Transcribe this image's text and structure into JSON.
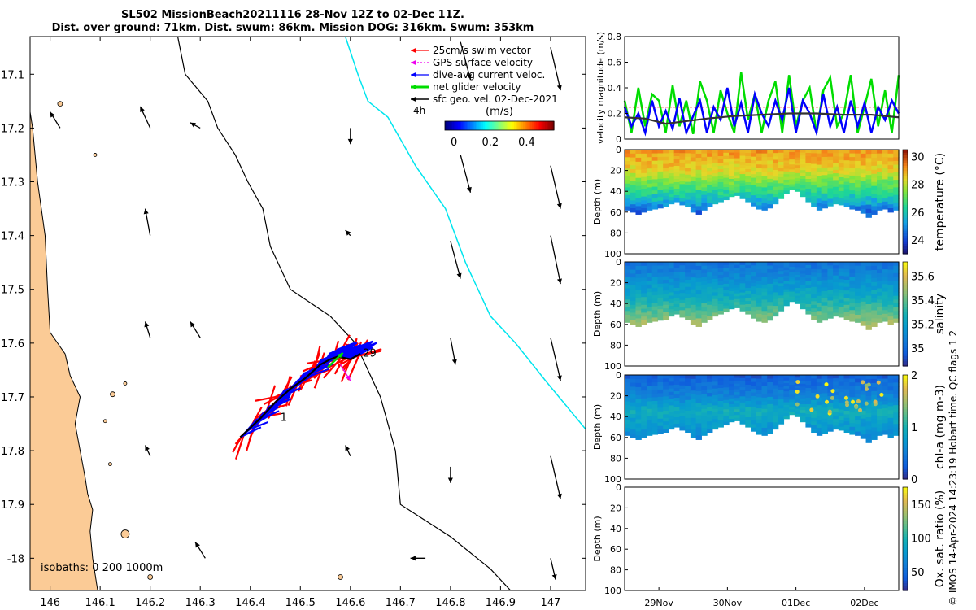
{
  "title": {
    "line1": "SL502 MissionBeach20211116 28-Nov 12Z to 02-Dec 11Z.",
    "line2": "Dist. over ground: 71km. Dist. swum: 86km. Mission DOG: 316km. Swum: 353km"
  },
  "credit": "© IMOS 14-Apr-2024 14:23:19 Hobart time. QC flags 1  2",
  "colors": {
    "land": "#fbcb96",
    "swim": "#ff0000",
    "gps": "#ee00ee",
    "dac": "#0000ff",
    "net": "#00dd00",
    "sfc": "#000000",
    "isobath_1000": "#00e5ee"
  },
  "chart_data": [
    {
      "type": "map",
      "name": "glider-track-map",
      "xlim": [
        145.96,
        147.07
      ],
      "ylim": [
        -18.06,
        -17.03
      ],
      "x_ticks": [
        146,
        146.1,
        146.2,
        146.3,
        146.4,
        146.5,
        146.6,
        146.7,
        146.8,
        146.9,
        147
      ],
      "x_tick_labels": [
        "146",
        "146.1",
        "146.2",
        "146.3",
        "146.4",
        "146.5",
        "146.6",
        "146.7",
        "146.8",
        "146.9",
        "147"
      ],
      "y_ticks": [
        -17.1,
        -17.2,
        -17.3,
        -17.4,
        -17.5,
        -17.6,
        -17.7,
        -17.8,
        -17.9,
        -18
      ],
      "y_tick_labels": [
        "17.1",
        "17.2",
        "17.3",
        "17.4",
        "17.5",
        "17.6",
        "17.7",
        "17.8",
        "17.9",
        "-18"
      ],
      "coastline": [
        [
          145.96,
          -17.17
        ],
        [
          145.965,
          -17.2
        ],
        [
          145.975,
          -17.3
        ],
        [
          145.99,
          -17.4
        ],
        [
          145.995,
          -17.5
        ],
        [
          146.0,
          -17.58
        ],
        [
          146.015,
          -17.6
        ],
        [
          146.03,
          -17.62
        ],
        [
          146.04,
          -17.66
        ],
        [
          146.06,
          -17.7
        ],
        [
          146.05,
          -17.75
        ],
        [
          146.06,
          -17.8
        ],
        [
          146.07,
          -17.85
        ],
        [
          146.075,
          -17.88
        ],
        [
          146.085,
          -17.91
        ],
        [
          146.08,
          -17.95
        ],
        [
          146.085,
          -18.0
        ],
        [
          146.09,
          -18.03
        ],
        [
          146.095,
          -18.06
        ]
      ],
      "islands": [
        [
          146.02,
          -17.155,
          3
        ],
        [
          146.09,
          -17.25,
          2
        ],
        [
          146.125,
          -17.695,
          3
        ],
        [
          146.15,
          -17.675,
          2
        ],
        [
          146.11,
          -17.745,
          2
        ],
        [
          146.12,
          -17.825,
          2
        ],
        [
          146.15,
          -17.955,
          5
        ],
        [
          146.2,
          -18.035,
          3
        ],
        [
          146.58,
          -18.035,
          3
        ]
      ],
      "isobath_200": [
        [
          146.255,
          -17.03
        ],
        [
          146.27,
          -17.1
        ],
        [
          146.315,
          -17.15
        ],
        [
          146.335,
          -17.2
        ],
        [
          146.37,
          -17.25
        ],
        [
          146.395,
          -17.3
        ],
        [
          146.425,
          -17.35
        ],
        [
          146.44,
          -17.42
        ],
        [
          146.48,
          -17.5
        ],
        [
          146.56,
          -17.55
        ],
        [
          146.61,
          -17.6
        ],
        [
          146.66,
          -17.7
        ],
        [
          146.69,
          -17.8
        ],
        [
          146.7,
          -17.9
        ],
        [
          146.8,
          -17.96
        ],
        [
          146.88,
          -18.02
        ],
        [
          146.92,
          -18.06
        ]
      ],
      "isobath_1000": [
        [
          146.59,
          -17.03
        ],
        [
          146.615,
          -17.1
        ],
        [
          146.635,
          -17.15
        ],
        [
          146.675,
          -17.18
        ],
        [
          146.73,
          -17.27
        ],
        [
          146.79,
          -17.35
        ],
        [
          146.83,
          -17.45
        ],
        [
          146.88,
          -17.55
        ],
        [
          146.93,
          -17.6
        ],
        [
          146.99,
          -17.67
        ],
        [
          147.07,
          -17.76
        ]
      ],
      "sfc_vectors": [
        [
          146.02,
          -17.2,
          146.0,
          -17.17
        ],
        [
          146.2,
          -17.2,
          146.18,
          -17.16
        ],
        [
          146.3,
          -17.2,
          146.28,
          -17.19
        ],
        [
          146.6,
          -17.2,
          146.6,
          -17.23
        ],
        [
          146.82,
          -17.04,
          146.84,
          -17.11
        ],
        [
          147.0,
          -17.05,
          147.02,
          -17.13
        ],
        [
          146.82,
          -17.25,
          146.84,
          -17.32
        ],
        [
          147.0,
          -17.27,
          147.02,
          -17.35
        ],
        [
          146.2,
          -17.4,
          146.19,
          -17.35
        ],
        [
          146.6,
          -17.4,
          146.59,
          -17.39
        ],
        [
          146.8,
          -17.41,
          146.82,
          -17.48
        ],
        [
          147.0,
          -17.4,
          147.02,
          -17.49
        ],
        [
          146.2,
          -17.59,
          146.19,
          -17.56
        ],
        [
          146.3,
          -17.59,
          146.28,
          -17.56
        ],
        [
          146.8,
          -17.59,
          146.81,
          -17.64
        ],
        [
          147.0,
          -17.59,
          147.02,
          -17.67
        ],
        [
          146.2,
          -17.81,
          146.19,
          -17.79
        ],
        [
          146.6,
          -17.81,
          146.59,
          -17.79
        ],
        [
          146.8,
          -17.83,
          146.8,
          -17.86
        ],
        [
          147.0,
          -17.81,
          147.02,
          -17.89
        ],
        [
          146.31,
          -18.0,
          146.29,
          -17.97
        ],
        [
          146.75,
          -18.0,
          146.72,
          -18.0
        ],
        [
          147.0,
          -18.0,
          147.01,
          -18.04
        ]
      ],
      "track": [
        [
          146.38,
          -17.775
        ],
        [
          146.42,
          -17.74
        ],
        [
          146.45,
          -17.71
        ],
        [
          146.48,
          -17.685
        ],
        [
          146.51,
          -17.665
        ],
        [
          146.54,
          -17.64
        ],
        [
          146.56,
          -17.63
        ],
        [
          146.575,
          -17.625
        ],
        [
          146.6,
          -17.63
        ],
        [
          146.62,
          -17.62
        ]
      ],
      "track_labels": [
        {
          "text": "1",
          "lon": 146.46,
          "lat": -17.745
        },
        {
          "text": "29",
          "lon": 146.625,
          "lat": -17.625
        }
      ],
      "isobath_label": "isobaths: 0   200  1000m",
      "legend": [
        {
          "label": "25cm/s swim vector",
          "color": "#ff0000"
        },
        {
          "label": "GPS surface velocity",
          "color": "#ee00ee"
        },
        {
          "label": "dive-avg current veloc.",
          "color": "#0000ff"
        },
        {
          "label": "net glider velocity",
          "color": "#00dd00"
        },
        {
          "label": "sfc geo. vel. 02-Dec-2021",
          "color": "#000000"
        }
      ],
      "legend_note": "4h",
      "colorbar": {
        "label": "(m/s)",
        "range": [
          -0.05,
          0.55
        ],
        "ticks": [
          0,
          0.2,
          0.4
        ],
        "tick_labels": [
          "0",
          "0.2",
          "0.4"
        ]
      }
    },
    {
      "type": "line",
      "name": "velocity-magnitude",
      "ylabel": "velocity magnitude (m/s)",
      "ylim": [
        0,
        0.8
      ],
      "y_ticks": [
        0,
        0.2,
        0.4,
        0.6,
        0.8
      ],
      "y_tick_labels": [
        "0",
        "0.2",
        "0.4",
        "0.6",
        "0.8"
      ],
      "xlim": [
        0,
        4
      ],
      "series": [
        {
          "name": "net glider velocity",
          "color": "#00dd00",
          "x": [
            0,
            0.1,
            0.2,
            0.3,
            0.4,
            0.5,
            0.6,
            0.7,
            0.8,
            0.9,
            1.0,
            1.1,
            1.2,
            1.3,
            1.4,
            1.5,
            1.6,
            1.7,
            1.8,
            1.9,
            2.0,
            2.1,
            2.2,
            2.3,
            2.4,
            2.5,
            2.6,
            2.7,
            2.8,
            2.9,
            3.0,
            3.1,
            3.2,
            3.3,
            3.4,
            3.5,
            3.6,
            3.7,
            3.8,
            3.9,
            4.0
          ],
          "values": [
            0.3,
            0.05,
            0.4,
            0.1,
            0.35,
            0.3,
            0.05,
            0.42,
            0.1,
            0.3,
            0.04,
            0.45,
            0.3,
            0.05,
            0.38,
            0.2,
            0.05,
            0.52,
            0.15,
            0.35,
            0.05,
            0.3,
            0.45,
            0.05,
            0.5,
            0.1,
            0.3,
            0.4,
            0.05,
            0.38,
            0.48,
            0.1,
            0.2,
            0.5,
            0.05,
            0.25,
            0.47,
            0.1,
            0.38,
            0.05,
            0.5
          ]
        },
        {
          "name": "dive-avg current veloc.",
          "color": "#0000ff",
          "x": [
            0,
            0.1,
            0.2,
            0.3,
            0.4,
            0.5,
            0.6,
            0.7,
            0.8,
            0.9,
            1.0,
            1.1,
            1.2,
            1.3,
            1.4,
            1.5,
            1.6,
            1.7,
            1.8,
            1.9,
            2.0,
            2.1,
            2.2,
            2.3,
            2.4,
            2.5,
            2.6,
            2.7,
            2.8,
            2.9,
            3.0,
            3.1,
            3.2,
            3.3,
            3.4,
            3.5,
            3.6,
            3.7,
            3.8,
            3.9,
            4.0
          ],
          "values": [
            0.25,
            0.1,
            0.2,
            0.05,
            0.3,
            0.1,
            0.22,
            0.08,
            0.32,
            0.05,
            0.18,
            0.3,
            0.05,
            0.25,
            0.15,
            0.4,
            0.1,
            0.28,
            0.05,
            0.35,
            0.2,
            0.1,
            0.3,
            0.15,
            0.4,
            0.05,
            0.3,
            0.2,
            0.05,
            0.35,
            0.1,
            0.25,
            0.05,
            0.3,
            0.1,
            0.28,
            0.05,
            0.25,
            0.15,
            0.3,
            0.2
          ]
        },
        {
          "name": "swim speed",
          "color": "#ff0000",
          "x": [
            0,
            4
          ],
          "values": [
            0.25,
            0.25
          ]
        },
        {
          "name": "sfc velocity",
          "color": "#333333",
          "x": [
            0,
            0.3,
            0.6,
            0.9,
            1.2,
            1.6,
            2.0,
            2.4,
            2.8,
            3.2,
            3.6,
            4.0
          ],
          "values": [
            0.17,
            0.16,
            0.12,
            0.14,
            0.16,
            0.18,
            0.19,
            0.2,
            0.2,
            0.19,
            0.19,
            0.17
          ]
        }
      ]
    },
    {
      "type": "heatmap",
      "name": "temperature-section",
      "ylabel": "Depth (m)",
      "clabel": "temperature (°C)",
      "ylim": [
        0,
        100
      ],
      "y_ticks": [
        0,
        20,
        40,
        60,
        80,
        100
      ],
      "y_tick_labels": [
        "0",
        "20",
        "40",
        "60",
        "80",
        "100"
      ],
      "clim": [
        23,
        30.5
      ],
      "c_ticks": [
        24,
        26,
        28,
        30
      ],
      "c_tick_labels": [
        "24",
        "26",
        "28",
        "30"
      ],
      "bottom_depth": [
        58,
        60,
        62,
        60,
        58,
        57,
        56,
        55,
        52,
        50,
        53,
        55,
        60,
        62,
        58,
        55,
        52,
        50,
        48,
        45,
        44,
        47,
        50,
        54,
        57,
        58,
        56,
        52,
        47,
        42,
        38,
        40,
        45,
        50,
        55,
        58,
        56,
        54,
        52,
        53,
        55,
        57,
        58,
        61,
        65,
        62,
        58,
        57,
        60,
        58
      ],
      "profiles": [
        {
          "depths": [
            0,
            20,
            40,
            50,
            60
          ],
          "values": [
            29.2,
            28.4,
            26.5,
            25.5,
            24.3
          ]
        }
      ]
    },
    {
      "type": "heatmap",
      "name": "salinity-section",
      "ylabel": "Depth (m)",
      "clabel": "salinity",
      "ylim": [
        0,
        100
      ],
      "y_ticks": [
        0,
        20,
        40,
        60,
        80,
        100
      ],
      "y_tick_labels": [
        "0",
        "20",
        "40",
        "60",
        "80",
        "100"
      ],
      "clim": [
        34.85,
        35.72
      ],
      "c_ticks": [
        35,
        35.2,
        35.4,
        35.6
      ],
      "c_tick_labels": [
        "35",
        "35.2",
        "35.4",
        "35.6"
      ],
      "bottom_depth": [
        58,
        60,
        62,
        60,
        58,
        57,
        56,
        55,
        52,
        50,
        53,
        55,
        60,
        62,
        58,
        55,
        52,
        50,
        48,
        45,
        44,
        47,
        50,
        54,
        57,
        58,
        56,
        52,
        47,
        42,
        38,
        40,
        45,
        50,
        55,
        58,
        56,
        54,
        52,
        53,
        55,
        57,
        58,
        61,
        65,
        62,
        58,
        57,
        60,
        58
      ],
      "profiles": [
        {
          "depths": [
            0,
            20,
            40,
            50,
            60
          ],
          "values": [
            35.02,
            35.15,
            35.3,
            35.4,
            35.5
          ]
        }
      ]
    },
    {
      "type": "heatmap",
      "name": "chlorophyll-section",
      "ylabel": "Depth (m)",
      "clabel": "chl-a (mg m-3)",
      "ylim": [
        0,
        100
      ],
      "y_ticks": [
        0,
        20,
        40,
        60,
        80,
        100
      ],
      "y_tick_labels": [
        "0",
        "20",
        "40",
        "60",
        "80",
        "100"
      ],
      "clim": [
        0,
        2
      ],
      "c_ticks": [
        0,
        1,
        2
      ],
      "c_tick_labels": [
        "0",
        "1",
        "2"
      ],
      "bottom_depth": [
        58,
        60,
        62,
        60,
        58,
        57,
        56,
        55,
        52,
        50,
        53,
        55,
        60,
        62,
        58,
        55,
        52,
        50,
        48,
        45,
        44,
        47,
        50,
        54,
        57,
        58,
        56,
        52,
        47,
        42,
        38,
        40,
        45,
        50,
        55,
        58,
        56,
        54,
        52,
        53,
        55,
        57,
        58,
        61,
        65,
        62,
        58,
        57,
        60,
        58
      ],
      "profiles": [
        {
          "depths": [
            0,
            20,
            35,
            45,
            60
          ],
          "values": [
            0.25,
            0.55,
            0.95,
            0.8,
            0.6
          ]
        }
      ]
    },
    {
      "type": "heatmap",
      "name": "oxygen-saturation-section",
      "ylabel": "Depth (m)",
      "clabel": "Ox. sat. ratio (%)",
      "ylim": [
        0,
        100
      ],
      "y_ticks": [
        0,
        20,
        40,
        60,
        80,
        100
      ],
      "y_tick_labels": [
        "0",
        "20",
        "40",
        "60",
        "80",
        "100"
      ],
      "clim": [
        22,
        175
      ],
      "c_ticks": [
        50,
        100,
        150
      ],
      "c_tick_labels": [
        "50",
        "100",
        "150"
      ],
      "x_tick_labels": [
        "29Nov",
        "30Nov",
        "01Dec",
        "02Dec"
      ],
      "x_ticks": [
        0.5,
        1.5,
        2.5,
        3.5
      ],
      "xlim": [
        0,
        4
      ]
    }
  ]
}
